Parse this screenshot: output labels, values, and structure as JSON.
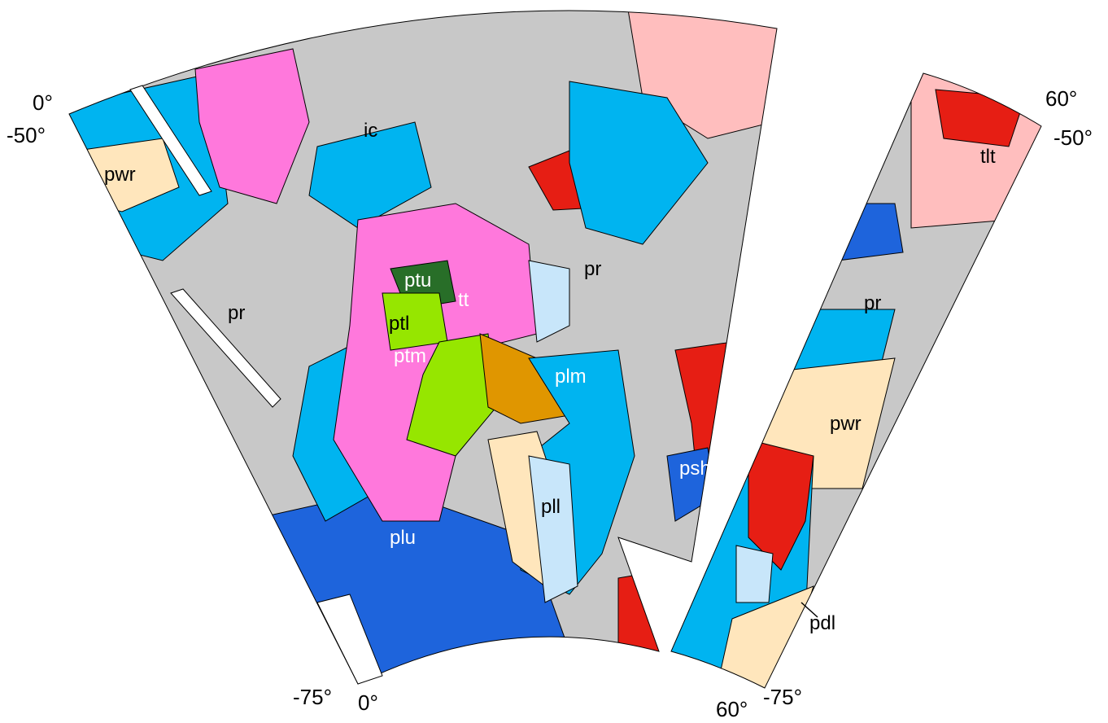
{
  "map": {
    "coordinate_labels": {
      "top_left_longitude": "0°",
      "top_left_latitude": "-50°",
      "top_right_longitude": "60°",
      "top_right_latitude": "-50°",
      "bottom_left_latitude": "-75°",
      "bottom_left_longitude": "0°",
      "bottom_right_longitude": "60°",
      "bottom_right_latitude": "-75°"
    },
    "units": [
      "pwr",
      "ic",
      "pr",
      "ptu",
      "ptl",
      "ptm",
      "tt",
      "pr",
      "plm",
      "pll",
      "plu",
      "psh",
      "pwr",
      "pr",
      "tlt",
      "pdl"
    ]
  }
}
